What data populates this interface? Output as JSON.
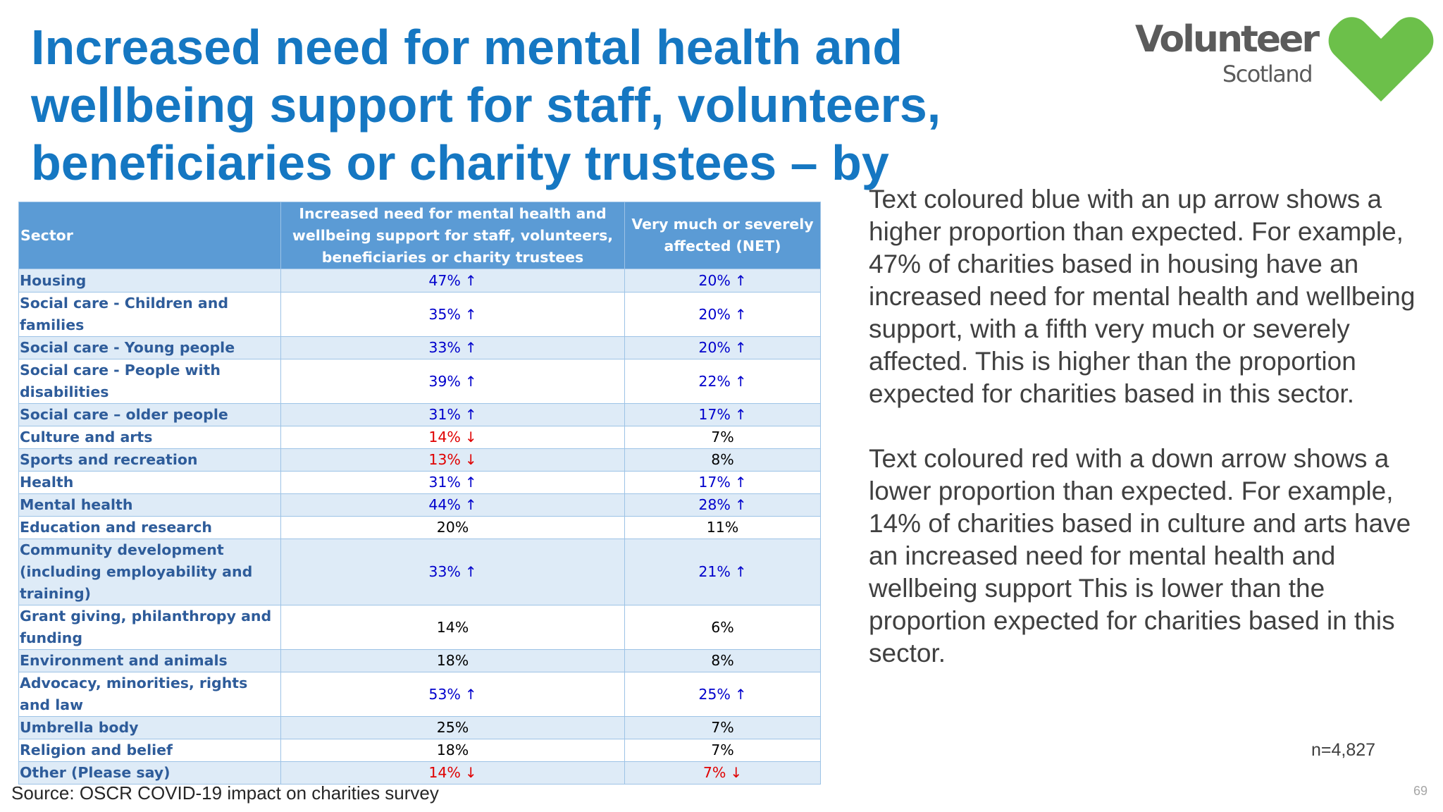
{
  "slide": {
    "title": "Increased need for mental health and wellbeing support for staff, volunteers, beneficiaries or charity trustees – by individual charity sectors",
    "logo": {
      "word1": "Volunteer",
      "word2": "Scotland"
    },
    "page_number": "69",
    "source": "Source: OSCR COVID-19 impact on charities survey",
    "sample_size": "n=4,827"
  },
  "colors": {
    "title": "#1577c2",
    "header_fill": "#5b9bd5",
    "row_band": "#deebf7",
    "higher": "#0000cc",
    "lower": "#e00000",
    "logo_heart": "#6cc04a"
  },
  "table": {
    "headers": [
      "Sector",
      "Increased need for mental health and wellbeing support for staff, volunteers, beneficiaries or charity trustees",
      "Very much or severely affected (NET)"
    ],
    "rows": [
      {
        "sector": "Housing",
        "need": "47%",
        "need_dir": "up",
        "affected": "20%",
        "affected_dir": "up"
      },
      {
        "sector": "Social care - Children and families",
        "need": "35%",
        "need_dir": "up",
        "affected": "20%",
        "affected_dir": "up"
      },
      {
        "sector": "Social care - Young people",
        "need": "33%",
        "need_dir": "up",
        "affected": "20%",
        "affected_dir": "up"
      },
      {
        "sector": "Social care - People with disabilities",
        "need": "39%",
        "need_dir": "up",
        "affected": "22%",
        "affected_dir": "up"
      },
      {
        "sector": "Social care – older people",
        "need": "31%",
        "need_dir": "up",
        "affected": "17%",
        "affected_dir": "up"
      },
      {
        "sector": "Culture and arts",
        "need": "14%",
        "need_dir": "down",
        "affected": "7%",
        "affected_dir": "none"
      },
      {
        "sector": "Sports and recreation",
        "need": "13%",
        "need_dir": "down",
        "affected": "8%",
        "affected_dir": "none"
      },
      {
        "sector": "Health",
        "need": "31%",
        "need_dir": "up",
        "affected": "17%",
        "affected_dir": "up"
      },
      {
        "sector": "Mental health",
        "need": "44%",
        "need_dir": "up",
        "affected": "28%",
        "affected_dir": "up"
      },
      {
        "sector": "Education and research",
        "need": "20%",
        "need_dir": "none",
        "affected": "11%",
        "affected_dir": "none"
      },
      {
        "sector": "Community development (including employability and training)",
        "need": "33%",
        "need_dir": "up",
        "affected": "21%",
        "affected_dir": "up"
      },
      {
        "sector": "Grant giving, philanthropy and funding",
        "need": "14%",
        "need_dir": "none",
        "affected": "6%",
        "affected_dir": "none"
      },
      {
        "sector": "Environment and animals",
        "need": "18%",
        "need_dir": "none",
        "affected": "8%",
        "affected_dir": "none"
      },
      {
        "sector": "Advocacy, minorities, rights and law",
        "need": "53%",
        "need_dir": "up",
        "affected": "25%",
        "affected_dir": "up"
      },
      {
        "sector": "Umbrella body",
        "need": "25%",
        "need_dir": "none",
        "affected": "7%",
        "affected_dir": "none"
      },
      {
        "sector": "Religion and belief",
        "need": "18%",
        "need_dir": "none",
        "affected": "7%",
        "affected_dir": "none"
      },
      {
        "sector": "Other (Please say)",
        "need": "14%",
        "need_dir": "down",
        "affected": "7%",
        "affected_dir": "down"
      }
    ]
  },
  "explanation": {
    "blue_paragraph": "Text coloured blue with an up arrow shows a higher proportion than expected. For example, 47% of charities based in housing have an increased need for mental health and wellbeing support, with a fifth very much or severely affected. This is higher than the proportion expected for charities based in this sector.",
    "red_paragraph": "Text coloured red with a down arrow shows a lower proportion than expected. For example, 14% of charities based in culture and arts have an increased need for mental health and wellbeing support This is lower than the proportion expected for charities based in this sector."
  }
}
